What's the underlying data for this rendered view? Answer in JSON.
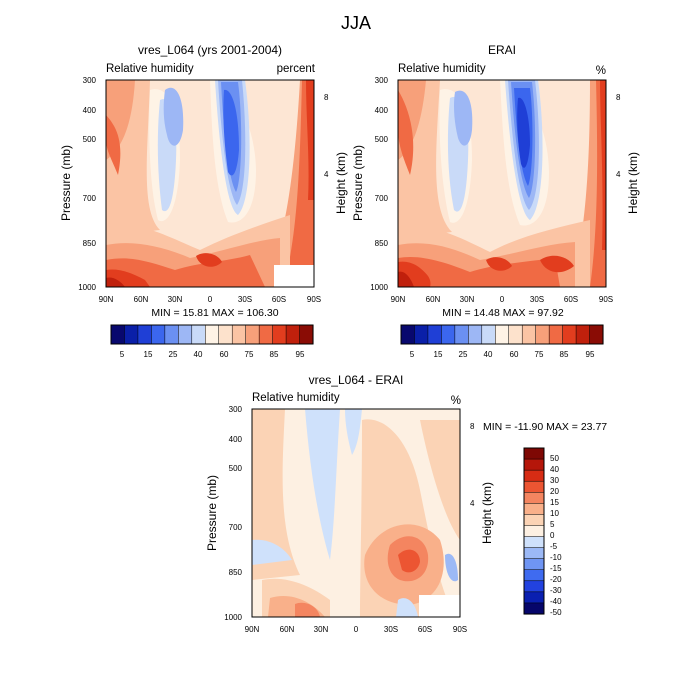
{
  "figure": {
    "title": "JJA"
  },
  "colors": {
    "rh_scale": [
      "#08086e",
      "#0a1fa8",
      "#1f3fd6",
      "#3b66ee",
      "#6b90f2",
      "#9db7f5",
      "#c9daf8",
      "#fef3e6",
      "#fde2cc",
      "#fbc4a4",
      "#f7a07a",
      "#f06a44",
      "#e23d1e",
      "#c0200c",
      "#8a0c05"
    ],
    "diff_scale": [
      "#06066a",
      "#0a1fb0",
      "#2242e0",
      "#3f6bf0",
      "#6f95f3",
      "#9cb9f6",
      "#cfe1fb",
      "#fdf0e2",
      "#fbd3b5",
      "#f9b08a",
      "#f48560",
      "#ec5532",
      "#d72c14",
      "#b5160a",
      "#7e0804"
    ]
  },
  "chart_data": [
    {
      "type": "heatmap",
      "panel": "model",
      "title": "vres_L064 (yrs 2001-2004)",
      "left_label": "Relative humidity",
      "right_label": "percent",
      "xlabel": "",
      "ylabel": "Pressure (mb)",
      "ylabel_right": "Height (km)",
      "x_ticks": [
        "90N",
        "60N",
        "30N",
        "0",
        "30S",
        "60S",
        "90S"
      ],
      "y_ticks": [
        300,
        400,
        500,
        700,
        850,
        1000
      ],
      "y_right_ticks": [
        8,
        4
      ],
      "ylim": [
        1000,
        300
      ],
      "log_scale_y": true,
      "stats": "MIN =  15.81   MAX = 106.30",
      "colorbar": {
        "labels": [
          "5",
          "15",
          "25",
          "40",
          "60",
          "75",
          "85",
          "95"
        ]
      }
    },
    {
      "type": "heatmap",
      "panel": "reanalysis",
      "title": "ERAI",
      "left_label": "Relative humidity",
      "right_label": "%",
      "xlabel": "",
      "ylabel": "Pressure (mb)",
      "ylabel_right": "Height (km)",
      "x_ticks": [
        "90N",
        "60N",
        "30N",
        "0",
        "30S",
        "60S",
        "90S"
      ],
      "y_ticks": [
        300,
        400,
        500,
        700,
        850,
        1000
      ],
      "y_right_ticks": [
        8,
        4
      ],
      "ylim": [
        1000,
        300
      ],
      "log_scale_y": true,
      "stats": "MIN =  14.48   MAX =  97.92",
      "colorbar": {
        "labels": [
          "5",
          "15",
          "25",
          "40",
          "60",
          "75",
          "85",
          "95"
        ]
      }
    },
    {
      "type": "heatmap",
      "panel": "difference",
      "title": "vres_L064 - ERAI",
      "left_label": "Relative humidity",
      "right_label": "%",
      "xlabel": "",
      "ylabel": "Pressure (mb)",
      "ylabel_right": "Height (km)",
      "x_ticks": [
        "90N",
        "60N",
        "30N",
        "0",
        "30S",
        "60S",
        "90S"
      ],
      "y_ticks": [
        300,
        400,
        500,
        700,
        850,
        1000
      ],
      "y_right_ticks": [
        8,
        4
      ],
      "ylim": [
        1000,
        300
      ],
      "log_scale_y": true,
      "stats": "MIN = -11.90   MAX =  23.77",
      "colorbar": {
        "labels": [
          "50",
          "40",
          "30",
          "20",
          "15",
          "10",
          "5",
          "0",
          "-5",
          "-10",
          "-15",
          "-20",
          "-30",
          "-40",
          "-50"
        ]
      }
    }
  ]
}
